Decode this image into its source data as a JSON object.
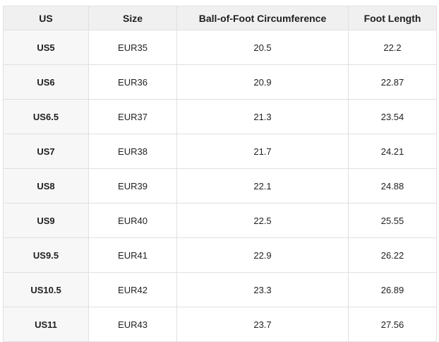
{
  "chart_data": {
    "type": "table",
    "columns": [
      "US",
      "Size",
      "Ball-of-Foot Circumference",
      "Foot Length"
    ],
    "rows": [
      [
        "US5",
        "EUR35",
        "20.5",
        "22.2"
      ],
      [
        "US6",
        "EUR36",
        "20.9",
        "22.87"
      ],
      [
        "US6.5",
        "EUR37",
        "21.3",
        "23.54"
      ],
      [
        "US7",
        "EUR38",
        "21.7",
        "24.21"
      ],
      [
        "US8",
        "EUR39",
        "22.1",
        "24.88"
      ],
      [
        "US9",
        "EUR40",
        "22.5",
        "25.55"
      ],
      [
        "US9.5",
        "EUR41",
        "22.9",
        "26.22"
      ],
      [
        "US10.5",
        "EUR42",
        "23.3",
        "26.89"
      ],
      [
        "US11",
        "EUR43",
        "23.7",
        "27.56"
      ]
    ],
    "layout": {
      "grid": "on",
      "header_row": true,
      "bold_first_column": true
    }
  },
  "theme": {
    "page_bg": "#ffffff",
    "header_bg": "#f0f0f0",
    "row_label_bg": "#f7f7f7",
    "cell_bg": "#ffffff",
    "border_color": "#e0e0e0",
    "text_color": "#1f1f1f"
  }
}
